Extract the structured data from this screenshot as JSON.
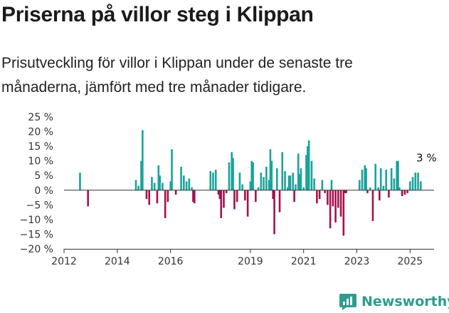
{
  "header": {
    "title": "Priserna på villor steg i Klippan",
    "subtitle": "Prisutveckling för villor i Klippan under de senaste tre månaderna, jämfört med tre månader tidigare."
  },
  "brand": {
    "name": "Newsworthy"
  },
  "colors": {
    "positive": "#1aa39a",
    "negative": "#a3124e",
    "axis": "#333333",
    "brand": "#2d9c8f"
  },
  "chart_data": {
    "type": "bar",
    "title": "",
    "xlabel": "",
    "ylabel": "",
    "ylim": [
      -20,
      25
    ],
    "xlim": [
      2012.0,
      2025.9
    ],
    "y_ticks": [
      25,
      20,
      15,
      10,
      5,
      0,
      -5,
      -10,
      -15,
      -20
    ],
    "y_tick_labels": [
      "25 %",
      "20 %",
      "15 %",
      "10 %",
      "5 %",
      "0 %",
      "−5 %",
      "−10 %",
      "−15 %",
      "−20 %"
    ],
    "x_ticks": [
      2012,
      2014,
      2016,
      2019,
      2021,
      2023,
      2025
    ],
    "x_tick_labels": [
      "2012",
      "2014",
      "2016",
      "2019",
      "2021",
      "2023",
      "2025"
    ],
    "annotation": {
      "label": "3 %",
      "x": 2025.5,
      "y": 3
    },
    "grid": false,
    "legend": "none",
    "series": [
      {
        "x": 2012.6,
        "value": 6
      },
      {
        "x": 2012.9,
        "value": -5.5
      },
      {
        "x": 2014.7,
        "value": 3.5
      },
      {
        "x": 2014.8,
        "value": 1.5
      },
      {
        "x": 2014.9,
        "value": 10
      },
      {
        "x": 2014.95,
        "value": 20.5
      },
      {
        "x": 2015.1,
        "value": -3
      },
      {
        "x": 2015.2,
        "value": -5
      },
      {
        "x": 2015.3,
        "value": 4.5
      },
      {
        "x": 2015.4,
        "value": 2.5
      },
      {
        "x": 2015.5,
        "value": -4.5
      },
      {
        "x": 2015.55,
        "value": 8.5
      },
      {
        "x": 2015.6,
        "value": 5
      },
      {
        "x": 2015.7,
        "value": 2.5
      },
      {
        "x": 2015.8,
        "value": -9.5
      },
      {
        "x": 2015.9,
        "value": -4
      },
      {
        "x": 2016.0,
        "value": 3
      },
      {
        "x": 2016.05,
        "value": 14
      },
      {
        "x": 2016.2,
        "value": -1.5
      },
      {
        "x": 2016.4,
        "value": 8
      },
      {
        "x": 2016.5,
        "value": 5
      },
      {
        "x": 2016.6,
        "value": 3
      },
      {
        "x": 2016.7,
        "value": 4
      },
      {
        "x": 2016.8,
        "value": 1
      },
      {
        "x": 2016.85,
        "value": -4
      },
      {
        "x": 2016.9,
        "value": -4.5
      },
      {
        "x": 2017.5,
        "value": 6.5
      },
      {
        "x": 2017.6,
        "value": 6
      },
      {
        "x": 2017.7,
        "value": 7
      },
      {
        "x": 2017.8,
        "value": -1.5
      },
      {
        "x": 2017.85,
        "value": -3
      },
      {
        "x": 2017.9,
        "value": -9.5
      },
      {
        "x": 2018.0,
        "value": -6
      },
      {
        "x": 2018.1,
        "value": -1
      },
      {
        "x": 2018.2,
        "value": 9.5
      },
      {
        "x": 2018.3,
        "value": 13
      },
      {
        "x": 2018.35,
        "value": 11
      },
      {
        "x": 2018.4,
        "value": -6.5
      },
      {
        "x": 2018.5,
        "value": -4
      },
      {
        "x": 2018.6,
        "value": 6
      },
      {
        "x": 2018.7,
        "value": 2
      },
      {
        "x": 2018.8,
        "value": -3.5
      },
      {
        "x": 2018.9,
        "value": -9
      },
      {
        "x": 2019.0,
        "value": 3
      },
      {
        "x": 2019.05,
        "value": 10
      },
      {
        "x": 2019.1,
        "value": 9.5
      },
      {
        "x": 2019.2,
        "value": -4
      },
      {
        "x": 2019.3,
        "value": 1
      },
      {
        "x": 2019.4,
        "value": 6
      },
      {
        "x": 2019.5,
        "value": 4.5
      },
      {
        "x": 2019.6,
        "value": 8
      },
      {
        "x": 2019.7,
        "value": 3.5
      },
      {
        "x": 2019.75,
        "value": 14
      },
      {
        "x": 2019.8,
        "value": 10
      },
      {
        "x": 2019.85,
        "value": -3
      },
      {
        "x": 2019.9,
        "value": -15
      },
      {
        "x": 2020.0,
        "value": 7.5
      },
      {
        "x": 2020.1,
        "value": -7.5
      },
      {
        "x": 2020.2,
        "value": 13
      },
      {
        "x": 2020.3,
        "value": 6.5
      },
      {
        "x": 2020.4,
        "value": 1
      },
      {
        "x": 2020.45,
        "value": 5
      },
      {
        "x": 2020.5,
        "value": 5
      },
      {
        "x": 2020.6,
        "value": 6
      },
      {
        "x": 2020.65,
        "value": -4
      },
      {
        "x": 2020.7,
        "value": 2
      },
      {
        "x": 2020.8,
        "value": 12.5
      },
      {
        "x": 2020.85,
        "value": 5.5
      },
      {
        "x": 2020.9,
        "value": 7.5
      },
      {
        "x": 2021.0,
        "value": 1
      },
      {
        "x": 2021.1,
        "value": 12
      },
      {
        "x": 2021.15,
        "value": 15
      },
      {
        "x": 2021.2,
        "value": 17
      },
      {
        "x": 2021.3,
        "value": 10
      },
      {
        "x": 2021.4,
        "value": 4
      },
      {
        "x": 2021.5,
        "value": -4.5
      },
      {
        "x": 2021.6,
        "value": -3
      },
      {
        "x": 2021.7,
        "value": 3.5
      },
      {
        "x": 2021.8,
        "value": -1
      },
      {
        "x": 2021.9,
        "value": -5
      },
      {
        "x": 2022.0,
        "value": -13
      },
      {
        "x": 2022.05,
        "value": 3.5
      },
      {
        "x": 2022.1,
        "value": -5.5
      },
      {
        "x": 2022.2,
        "value": -11
      },
      {
        "x": 2022.3,
        "value": -6
      },
      {
        "x": 2022.4,
        "value": -9
      },
      {
        "x": 2022.5,
        "value": -15.5
      },
      {
        "x": 2022.55,
        "value": -1
      },
      {
        "x": 2022.6,
        "value": -1
      },
      {
        "x": 2023.1,
        "value": 3.5
      },
      {
        "x": 2023.2,
        "value": 7
      },
      {
        "x": 2023.3,
        "value": 8.5
      },
      {
        "x": 2023.35,
        "value": 7.5
      },
      {
        "x": 2023.4,
        "value": -1
      },
      {
        "x": 2023.5,
        "value": 1
      },
      {
        "x": 2023.6,
        "value": -10.5
      },
      {
        "x": 2023.7,
        "value": 9
      },
      {
        "x": 2023.8,
        "value": 1
      },
      {
        "x": 2023.85,
        "value": -3.5
      },
      {
        "x": 2023.9,
        "value": 7.5
      },
      {
        "x": 2024.0,
        "value": 1.5
      },
      {
        "x": 2024.1,
        "value": 7
      },
      {
        "x": 2024.2,
        "value": -2.5
      },
      {
        "x": 2024.3,
        "value": 7.5
      },
      {
        "x": 2024.4,
        "value": 4
      },
      {
        "x": 2024.5,
        "value": 10
      },
      {
        "x": 2024.55,
        "value": 10
      },
      {
        "x": 2024.6,
        "value": 1
      },
      {
        "x": 2024.7,
        "value": -2
      },
      {
        "x": 2024.8,
        "value": -1.5
      },
      {
        "x": 2024.9,
        "value": -1
      },
      {
        "x": 2025.0,
        "value": 3
      },
      {
        "x": 2025.1,
        "value": 4.5
      },
      {
        "x": 2025.2,
        "value": 6
      },
      {
        "x": 2025.3,
        "value": 6
      },
      {
        "x": 2025.4,
        "value": 3
      }
    ]
  }
}
